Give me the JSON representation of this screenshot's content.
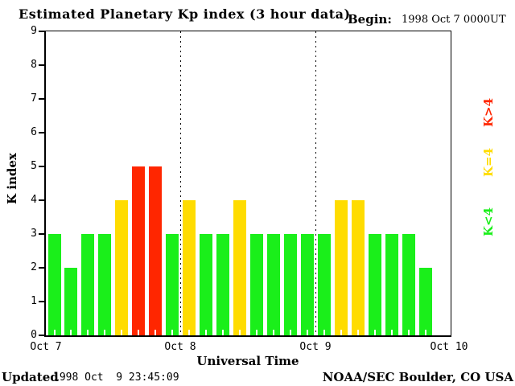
{
  "header": {
    "title": "Estimated Planetary Kp index (3 hour data)",
    "begin_label": "Begin:",
    "begin_value": "1998 Oct 7 0000UT"
  },
  "y_axis": {
    "title": "K index",
    "ticks": [
      0,
      1,
      2,
      3,
      4,
      5,
      6,
      7,
      8,
      9
    ]
  },
  "x_axis": {
    "title": "Universal Time",
    "day_labels": [
      "Oct 7",
      "Oct 8",
      "Oct 9",
      "Oct 10"
    ]
  },
  "legend": [
    {
      "label": "K>4",
      "color": "#ff2600",
      "rule": "above_4"
    },
    {
      "label": "K=4",
      "color": "#ffdc00",
      "rule": "equal_4"
    },
    {
      "label": "K<4",
      "color": "#1aef1a",
      "rule": "below_4"
    }
  ],
  "footer": {
    "updated_label": "Updated",
    "updated_value": "1998 Oct  9 23:45:09",
    "credit": "NOAA/SEC Boulder, CO USA"
  },
  "chart_data": {
    "type": "bar",
    "title": "Estimated Planetary Kp index (3 hour data)",
    "xlabel": "Universal Time",
    "ylabel": "K index",
    "ylim": [
      0,
      9
    ],
    "slots_per_day": 8,
    "hours_per_slot": 3,
    "begin": "1998 Oct 7 0000UT",
    "series": [
      {
        "day": "1998 Oct 7",
        "values": [
          3,
          2,
          3,
          3,
          4,
          5,
          5,
          3
        ]
      },
      {
        "day": "1998 Oct 8",
        "values": [
          4,
          3,
          3,
          4,
          3,
          3,
          3,
          3
        ]
      },
      {
        "day": "1998 Oct 9",
        "values": [
          3,
          4,
          4,
          3,
          3,
          3,
          2
        ]
      }
    ],
    "colors": {
      "below_4": "#1aef1a",
      "equal_4": "#ffdc00",
      "above_4": "#ff2600"
    },
    "day_boundaries_dotted": true,
    "legend_position": "right-rotated"
  }
}
